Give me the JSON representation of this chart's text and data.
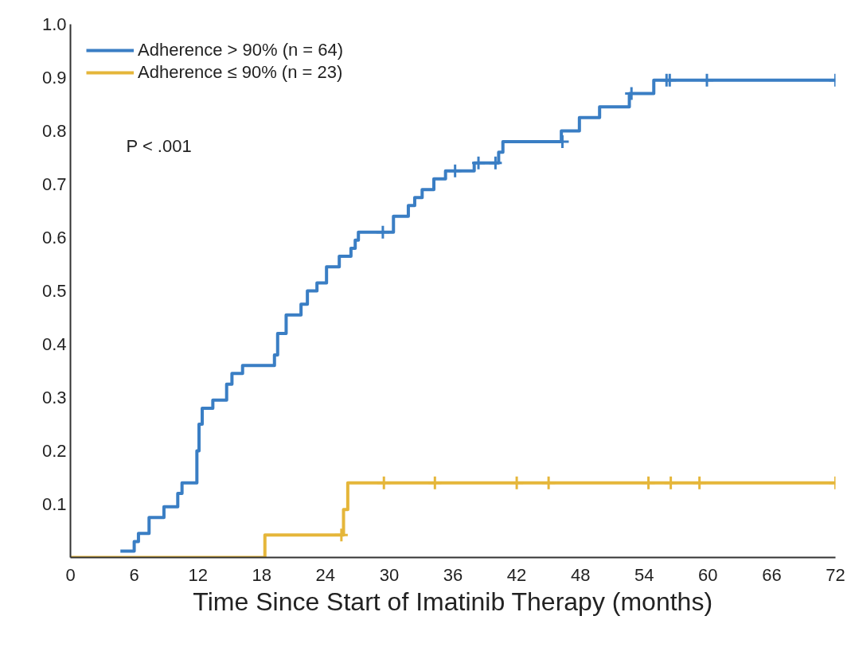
{
  "chart_data": {
    "type": "step",
    "xlabel": "Time Since Start of Imatinib Therapy (months)",
    "xlim": [
      0,
      72
    ],
    "xticks": [
      0,
      6,
      12,
      18,
      24,
      30,
      36,
      42,
      48,
      54,
      60,
      66,
      72
    ],
    "ylim": [
      0,
      1.0
    ],
    "yticks": [
      {
        "value": 0.1,
        "label": "0.1"
      },
      {
        "value": 0.2,
        "label": "0.2"
      },
      {
        "value": 0.3,
        "label": "0.3"
      },
      {
        "value": 0.4,
        "label": "0.4"
      },
      {
        "value": 0.5,
        "label": "0.5"
      },
      {
        "value": 0.6,
        "label": "0.6"
      },
      {
        "value": 0.7,
        "label": "0.7"
      },
      {
        "value": 0.8,
        "label": "0.8"
      },
      {
        "value": 0.9,
        "label": "0.9"
      },
      {
        "value": 1.0,
        "label": "1.0"
      }
    ],
    "grid": false,
    "legend": "top left",
    "line_style": "solid",
    "annotations": [
      "P < .001"
    ],
    "series": [
      {
        "name": "Adherence > 90% (n = 64)",
        "color": "#3a7ec4",
        "x": [
          4.7,
          6.0,
          6.4,
          7.4,
          8.8,
          10.1,
          10.5,
          11.9,
          12.1,
          12.4,
          13.4,
          14.7,
          15.2,
          16.2,
          19.2,
          19.5,
          20.3,
          21.7,
          22.3,
          23.2,
          24.1,
          25.3,
          26.4,
          26.8,
          27.1,
          30.4,
          31.8,
          32.4,
          33.1,
          34.2,
          35.3,
          38.0,
          40.3,
          40.7,
          46.2,
          47.9,
          49.8,
          52.6,
          54.9,
          72
        ],
        "values": [
          0.012,
          0.03,
          0.045,
          0.075,
          0.095,
          0.12,
          0.14,
          0.2,
          0.25,
          0.28,
          0.295,
          0.325,
          0.345,
          0.36,
          0.38,
          0.42,
          0.455,
          0.475,
          0.5,
          0.515,
          0.545,
          0.565,
          0.58,
          0.595,
          0.61,
          0.64,
          0.66,
          0.675,
          0.69,
          0.71,
          0.725,
          0.74,
          0.76,
          0.78,
          0.8,
          0.825,
          0.845,
          0.87,
          0.895,
          0.895
        ]
      },
      {
        "name": "Adherence ≤ 90% (n = 23)",
        "color": "#e5b63a",
        "x": [
          0,
          18.3,
          25.7,
          26.1,
          72
        ],
        "values": [
          0,
          0.042,
          0.09,
          0.14,
          0.14
        ]
      },
      {
        "color": "#3a7ec4",
        "type": "scatter",
        "marker": "cross",
        "x": [
          29.4,
          36.2,
          38.4,
          40.0,
          46.3,
          52.8,
          56.1,
          56.4,
          59.9,
          72
        ],
        "values": [
          0.61,
          0.725,
          0.74,
          0.74,
          0.78,
          0.87,
          0.895,
          0.895,
          0.895,
          0.895
        ]
      },
      {
        "color": "#e5b63a",
        "type": "scatter",
        "marker": "cross",
        "x": [
          25.5,
          29.5,
          34.3,
          42,
          45,
          54.4,
          56.5,
          59.2,
          72
        ],
        "values": [
          0.042,
          0.14,
          0.14,
          0.14,
          0.14,
          0.14,
          0.14,
          0.14,
          0.14
        ]
      }
    ]
  }
}
